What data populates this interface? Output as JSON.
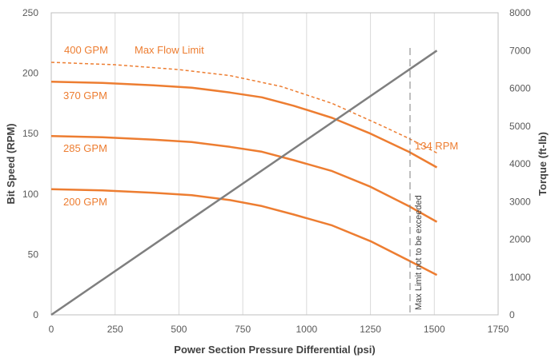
{
  "chart_data": {
    "type": "line",
    "title": "",
    "xlabel": "Power Section Pressure Differential (psi)",
    "ylabel_left": "Bit Speed (RPM)",
    "ylabel_right": "Torque (ft-lb)",
    "xlim": [
      0,
      1750
    ],
    "ylim_left": [
      0,
      250
    ],
    "ylim_right": [
      0,
      8000
    ],
    "x_ticks": [
      "0",
      "250",
      "500",
      "750",
      "1000",
      "1250",
      "1500",
      "1750"
    ],
    "y_left_ticks": [
      "0",
      "50",
      "100",
      "150",
      "200",
      "250"
    ],
    "y_right_ticks": [
      "0",
      "1000",
      "2000",
      "3000",
      "4000",
      "5000",
      "6000",
      "7000",
      "8000"
    ],
    "grid": "vertical",
    "series": [
      {
        "name": "400 GPM",
        "axis": "left",
        "style": "dashed",
        "color": "#ed7d31",
        "x": [
          0,
          250,
          500,
          700,
          900,
          1100,
          1300,
          1400,
          1510
        ],
        "y": [
          209,
          207,
          203,
          198,
          189,
          175,
          156,
          146,
          134
        ]
      },
      {
        "name": "370 GPM",
        "axis": "left",
        "style": "solid",
        "color": "#ed7d31",
        "x": [
          0,
          200,
          400,
          550,
          700,
          825,
          950,
          1100,
          1250,
          1400,
          1510
        ],
        "y": [
          193,
          192,
          190,
          188,
          184,
          180,
          173,
          163,
          150,
          135,
          122
        ]
      },
      {
        "name": "285 GPM",
        "axis": "left",
        "style": "solid",
        "color": "#ed7d31",
        "x": [
          0,
          200,
          400,
          550,
          700,
          825,
          950,
          1100,
          1250,
          1400,
          1510
        ],
        "y": [
          148,
          147,
          145,
          143,
          139,
          135,
          128,
          119,
          106,
          90,
          77
        ]
      },
      {
        "name": "200 GPM",
        "axis": "left",
        "style": "solid",
        "color": "#ed7d31",
        "x": [
          0,
          200,
          400,
          550,
          700,
          825,
          950,
          1100,
          1250,
          1400,
          1510
        ],
        "y": [
          104,
          103,
          101,
          99,
          95,
          90,
          83,
          74,
          61,
          45,
          33
        ]
      },
      {
        "name": "",
        "axis": "right",
        "style": "solid",
        "color": "#7f7f7f",
        "x": [
          0,
          1510
        ],
        "y": [
          0,
          7000
        ]
      }
    ],
    "annotations": {
      "max_flow_label": "Max Flow Limit",
      "rpm_label": "134 RPM",
      "max_limit_label": "Max Limit not to be exceeded",
      "max_limit_x": 1405
    }
  }
}
